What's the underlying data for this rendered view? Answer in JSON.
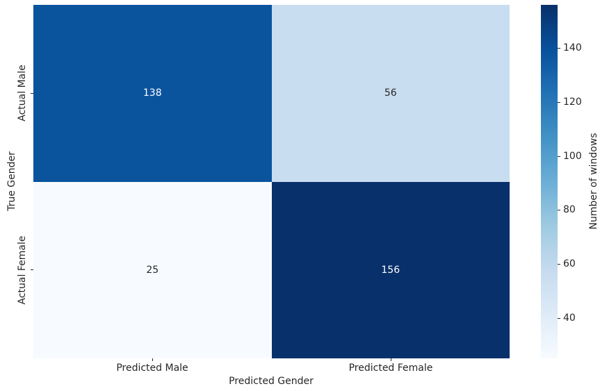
{
  "chart_data": {
    "type": "heatmap",
    "title": "",
    "xlabel": "Predicted Gender",
    "ylabel": "True Gender",
    "x_categories": [
      "Predicted Male",
      "Predicted Female"
    ],
    "y_categories": [
      "Actual Male",
      "Actual Female"
    ],
    "values": [
      [
        138,
        56
      ],
      [
        25,
        156
      ]
    ],
    "cell_colors": [
      [
        "#0a549e",
        "#c9ddf0"
      ],
      [
        "#f7fbff",
        "#08306b"
      ]
    ],
    "cell_text_colors": [
      [
        "#ffffff",
        "#262626"
      ],
      [
        "#262626",
        "#ffffff"
      ]
    ],
    "colorbar": {
      "label": "Number of windows",
      "vmin": 25,
      "vmax": 156,
      "ticks": [
        40,
        60,
        80,
        100,
        120,
        140
      ],
      "colormap": "Blues",
      "gradient_stops": [
        "#f7fbff",
        "#deebf7",
        "#c6dbef",
        "#9ecae1",
        "#6baed6",
        "#4292c6",
        "#2171b5",
        "#08519c",
        "#08306b"
      ]
    },
    "layout": {
      "grid": "off",
      "legend": "none",
      "colorbar_position": "right",
      "background": "#ffffff"
    }
  }
}
